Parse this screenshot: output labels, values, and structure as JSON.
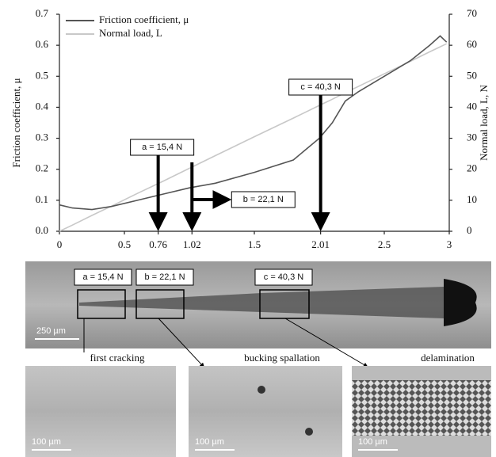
{
  "chart_data": {
    "type": "line",
    "x": [
      0,
      0.1,
      0.25,
      0.4,
      0.6,
      0.8,
      1.0,
      1.2,
      1.5,
      1.8,
      2.0,
      2.1,
      2.2,
      2.3,
      2.5,
      2.7,
      2.85,
      2.93,
      2.98
    ],
    "series": [
      {
        "name": "Friction coefficient, μ",
        "color": "#555555",
        "values": [
          0.085,
          0.075,
          0.07,
          0.08,
          0.1,
          0.12,
          0.14,
          0.155,
          0.19,
          0.23,
          0.3,
          0.35,
          0.42,
          0.45,
          0.5,
          0.55,
          0.6,
          0.63,
          0.61
        ]
      },
      {
        "name": "Normal load, L",
        "color": "#c8c8c8",
        "axis": "y2",
        "values": [
          0,
          2,
          5.1,
          8.1,
          12.2,
          16.2,
          20.3,
          24.4,
          30.5,
          36.5,
          40.6,
          42.6,
          44.7,
          46.7,
          50.8,
          54.8,
          57.9,
          59.5,
          60.5
        ]
      }
    ],
    "y_label": "Friction coefficient, μ",
    "y2_label": "Normal load, L, N",
    "xlim": [
      0,
      3
    ],
    "xticks": [
      0,
      0.5,
      0.76,
      1.02,
      1.5,
      2.01,
      2.5,
      3
    ],
    "ylim": [
      0,
      0.7
    ],
    "yticks": [
      {
        "value": 0,
        "label": "0.0"
      },
      0.1,
      0.2,
      0.3,
      0.4,
      0.5,
      0.6,
      0.7
    ],
    "y2lim": [
      0,
      70
    ],
    "y2ticks": [
      0,
      10,
      20,
      30,
      40,
      50,
      60,
      70
    ],
    "legend": "top-left",
    "annotations": [
      "a = 15,4 N",
      "b = 22,1 N",
      "c = 40,3 N"
    ]
  },
  "micrographs": {
    "overview": {
      "labels": [
        "a = 15,4 N",
        "b = 22,1 N",
        "c = 40,3 N"
      ],
      "scale_bar": "250 µm"
    },
    "panels": [
      {
        "caption": "first cracking",
        "scale_bar": "100 µm"
      },
      {
        "caption": "bucking spallation",
        "scale_bar": "100 µm"
      },
      {
        "caption": "delamination",
        "scale_bar": "100 µm"
      }
    ]
  }
}
